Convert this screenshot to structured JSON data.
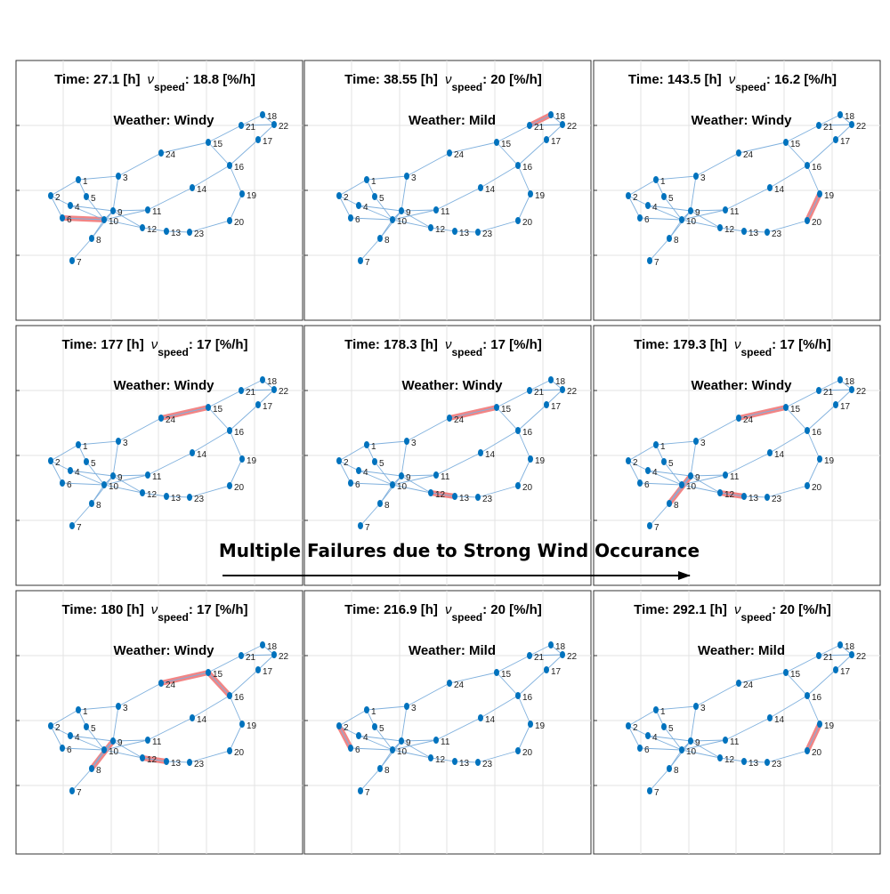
{
  "caption": "Multiple Failures due to Strong Wind Occurance",
  "speed_symbol": "ν",
  "speed_subscript": "speed",
  "nodes": [
    {
      "label": "1"
    },
    {
      "label": "2"
    },
    {
      "label": "3"
    },
    {
      "label": "4"
    },
    {
      "label": "5"
    },
    {
      "label": "6"
    },
    {
      "label": "7"
    },
    {
      "label": "8"
    },
    {
      "label": "9"
    },
    {
      "label": "10"
    },
    {
      "label": "11"
    },
    {
      "label": "12"
    },
    {
      "label": "13"
    },
    {
      "label": "14"
    },
    {
      "label": "15"
    },
    {
      "label": "16"
    },
    {
      "label": "17"
    },
    {
      "label": "18"
    },
    {
      "label": "19"
    },
    {
      "label": "20"
    },
    {
      "label": "21"
    },
    {
      "label": "22"
    },
    {
      "label": "23"
    },
    {
      "label": "24"
    }
  ],
  "panels": [
    {
      "time": "Time: 27.1 [h]",
      "speed": ": 18.8 [%/h]",
      "weather": "Weather: Windy",
      "failed_lines": [
        [
          "6",
          "10"
        ]
      ]
    },
    {
      "time": "Time: 38.55 [h]",
      "speed": ": 20 [%/h]",
      "weather": "Weather: Mild",
      "failed_lines": [
        [
          "21",
          "18"
        ]
      ]
    },
    {
      "time": "Time: 143.5 [h]",
      "speed": ": 16.2 [%/h]",
      "weather": "Weather: Windy",
      "failed_lines": [
        [
          "19",
          "20"
        ]
      ]
    },
    {
      "time": "Time: 177 [h]",
      "speed": ": 17 [%/h]",
      "weather": "Weather: Windy",
      "failed_lines": [
        [
          "24",
          "15"
        ]
      ]
    },
    {
      "time": "Time: 178.3 [h]",
      "speed": ": 17 [%/h]",
      "weather": "Weather: Windy",
      "failed_lines": [
        [
          "24",
          "15"
        ],
        [
          "12",
          "13"
        ]
      ]
    },
    {
      "time": "Time: 179.3 [h]",
      "speed": ": 17 [%/h]",
      "weather": "Weather: Windy",
      "failed_lines": [
        [
          "24",
          "15"
        ],
        [
          "12",
          "13"
        ],
        [
          "8",
          "9"
        ]
      ]
    },
    {
      "time": "Time: 180 [h]",
      "speed": ": 17 [%/h]",
      "weather": "Weather: Windy",
      "failed_lines": [
        [
          "24",
          "15"
        ],
        [
          "15",
          "16"
        ],
        [
          "12",
          "13"
        ],
        [
          "8",
          "9"
        ]
      ]
    },
    {
      "time": "Time: 216.9 [h]",
      "speed": ": 20 [%/h]",
      "weather": "Weather: Mild",
      "failed_lines": [
        [
          "2",
          "6"
        ]
      ]
    },
    {
      "time": "Time: 292.1 [h]",
      "speed": ": 20 [%/h]",
      "weather": "Weather: Mild",
      "failed_lines": [
        [
          "19",
          "20"
        ]
      ]
    }
  ]
}
